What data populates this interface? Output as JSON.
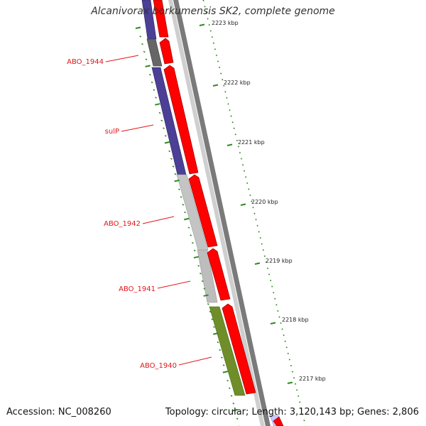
{
  "title": "Alcanivorax borkumensis SK2, complete genome",
  "accession_text": "Accession: NC_008260",
  "topology_text": "Topology: circular; Length: 3,120,143 bp; Genes: 2,806",
  "scale_ticks": [
    {
      "label": "2223 kbp"
    },
    {
      "label": "2222 kbp"
    },
    {
      "label": "2221 kbp"
    },
    {
      "label": "2220 kbp"
    },
    {
      "label": "2219 kbp"
    },
    {
      "label": "2218 kbp"
    },
    {
      "label": "2217 kbp"
    }
  ],
  "gene_labels": [
    "ABO_1944",
    "sulP",
    "ABO_1942",
    "ABO_1941",
    "ABO_1940"
  ],
  "colors": {
    "label_red": "#e3161b",
    "cds_red": "#ff0000",
    "tick_green": "#2e8b1e",
    "backbone_gray": "#8c8c8c",
    "gene_purple": "#4b3f96",
    "gene_gray_dark": "#6b6b6b",
    "gene_gray_light": "#c4c4c4",
    "gene_olive": "#6f8e2a",
    "gene_blue": "#1f3fff"
  }
}
